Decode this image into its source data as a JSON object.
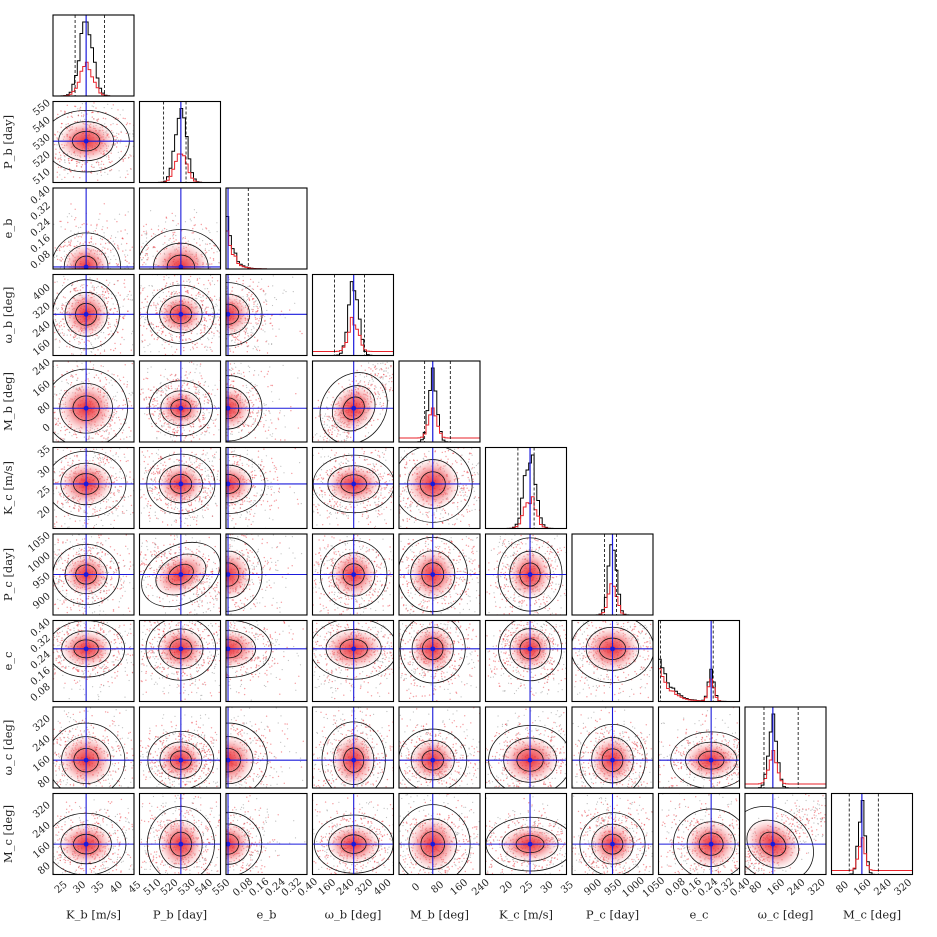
{
  "chart_data": {
    "type": "scatter",
    "subtype": "corner-plot",
    "description_free": true,
    "parameters": [
      {
        "key": "Kb",
        "label": "K_b [m/s]",
        "ticks": [
          "25",
          "30",
          "35",
          "40",
          "45"
        ],
        "range": [
          23,
          45
        ],
        "truth": 32,
        "dashed": [
          29,
          37
        ]
      },
      {
        "key": "Pb",
        "label": "P_b [day]",
        "ticks": [
          "510",
          "520",
          "530",
          "540",
          "550"
        ],
        "range": [
          503,
          550
        ],
        "truth": 527,
        "dashed": [
          517,
          530
        ]
      },
      {
        "key": "eb",
        "label": "e_b",
        "ticks": [
          "0.08",
          "0.16",
          "0.24",
          "0.32",
          "0.40"
        ],
        "range": [
          0.0,
          0.4
        ],
        "truth": 0.01,
        "dashed": [
          0.01,
          0.11
        ]
      },
      {
        "key": "wb",
        "label": "ω_b [deg]",
        "ticks": [
          "160",
          "240",
          "320",
          "400"
        ],
        "range": [
          100,
          450
        ],
        "truth": 278,
        "dashed": [
          195,
          325
        ]
      },
      {
        "key": "Mb",
        "label": "M_b [deg]",
        "ticks": [
          "0",
          "80",
          "160",
          "240"
        ],
        "range": [
          -60,
          240
        ],
        "truth": 65,
        "dashed": [
          35,
          130
        ]
      },
      {
        "key": "Kc",
        "label": "K_c [m/s]",
        "ticks": [
          "20",
          "25",
          "30",
          "35"
        ],
        "range": [
          15,
          35
        ],
        "truth": 26,
        "dashed": [
          23,
          27
        ]
      },
      {
        "key": "Pc",
        "label": "P_c [day]",
        "ticks": [
          "900",
          "950",
          "1000",
          "1050"
        ],
        "range": [
          850,
          1050
        ],
        "truth": 950,
        "dashed": [
          930,
          960
        ]
      },
      {
        "key": "ec",
        "label": "e_c",
        "ticks": [
          "0.08",
          "0.16",
          "0.24",
          "0.32",
          "0.40"
        ],
        "range": [
          0.0,
          0.4
        ],
        "truth": 0.26,
        "dashed": [
          0.01,
          0.27
        ]
      },
      {
        "key": "wc",
        "label": "ω_c [deg]",
        "ticks": [
          "80",
          "160",
          "240",
          "320"
        ],
        "range": [
          40,
          360
        ],
        "truth": 150,
        "dashed": [
          115,
          250
        ]
      },
      {
        "key": "Mc",
        "label": "M_c [deg]",
        "ticks": [
          "80",
          "160",
          "240",
          "320"
        ],
        "range": [
          40,
          360
        ],
        "truth": 160,
        "dashed": [
          110,
          225
        ]
      }
    ],
    "x_axis_labels": [
      "K_b [m/s]",
      "P_b [day]",
      "e_b",
      "ω_b [deg]",
      "M_b [deg]",
      "K_c [m/s]",
      "P_c [day]",
      "e_c",
      "ω_c [deg]",
      "M_c [deg]"
    ],
    "y_axis_labels": [
      "P_b [day]",
      "e_b",
      "ω_b [deg]",
      "M_b [deg]",
      "K_c [m/s]",
      "P_c [day]",
      "e_c",
      "ω_c [deg]",
      "M_c [deg]"
    ],
    "colors": {
      "truth_line": "#1a1adb",
      "posterior_red": "#e8222a",
      "samples_grey": "#808080",
      "histogram_black": "#000000"
    },
    "grid": false,
    "legend": "none"
  }
}
